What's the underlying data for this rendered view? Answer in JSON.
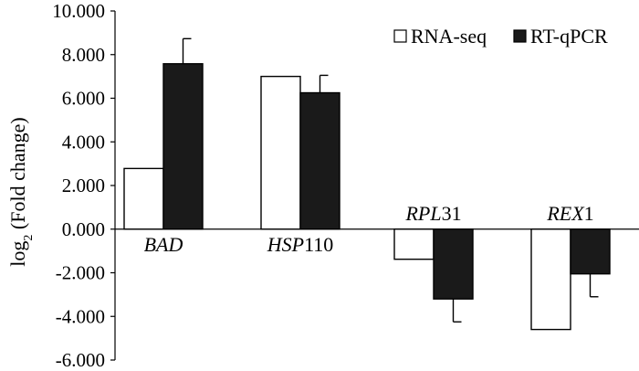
{
  "chart_data": {
    "type": "bar",
    "categories": [
      {
        "italic": "BAD",
        "plain": ""
      },
      {
        "italic": "HSP",
        "plain": "110"
      },
      {
        "italic": "RPL",
        "plain": "31"
      },
      {
        "italic": "REX",
        "plain": "1"
      }
    ],
    "series": [
      {
        "name": "RNA-seq",
        "values": [
          2.78,
          7.0,
          -1.38,
          -4.6
        ],
        "fill": "#ffffff",
        "errors": [
          null,
          null,
          null,
          null
        ]
      },
      {
        "name": "RT-qPCR",
        "values": [
          7.58,
          6.25,
          -3.2,
          -2.05
        ],
        "fill": "#1a1a1a",
        "errors": [
          1.15,
          0.8,
          1.05,
          1.05
        ]
      }
    ],
    "ylabel": {
      "main": "log",
      "sub": "2",
      "rest": " (Fold change)"
    },
    "ylim": [
      -6,
      10
    ],
    "ytick_step": 2,
    "yticks": [
      "10.000",
      "8.000",
      "6.000",
      "4.000",
      "2.000",
      "0.000",
      "-2.000",
      "-4.000",
      "-6.000"
    ],
    "legend_position": "top-right",
    "grid": false
  }
}
